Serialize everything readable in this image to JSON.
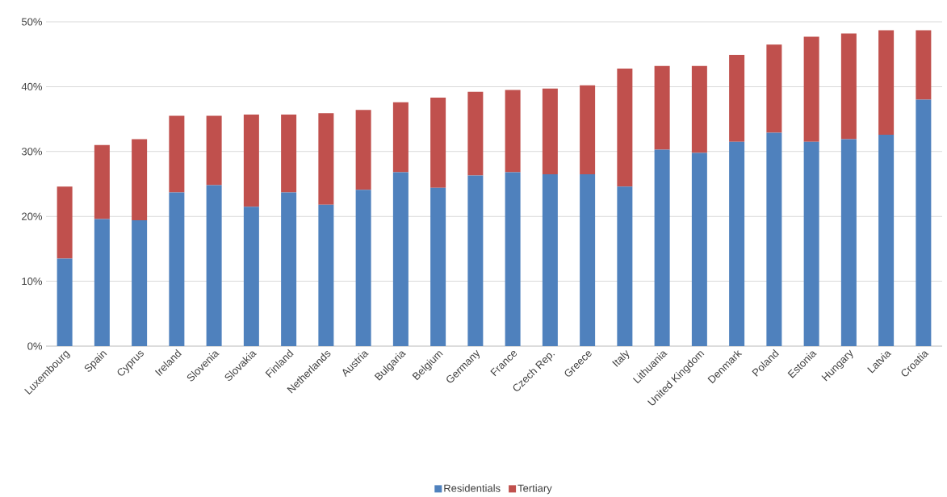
{
  "chart_data": {
    "type": "bar",
    "stacked": true,
    "categories": [
      "Luxembourg",
      "Spain",
      "Cyprus",
      "Ireland",
      "Slovenia",
      "Slovakia",
      "Finland",
      "Netherlands",
      "Austria",
      "Bulgaria",
      "Belgium",
      "Germany",
      "France",
      "Czech Rep.",
      "Greece",
      "Italy",
      "Lithuania",
      "United Kingdom",
      "Denmark",
      "Poland",
      "Estonia",
      "Hungary",
      "Latvia",
      "Croatia"
    ],
    "series": [
      {
        "name": "Residentials",
        "color": "#4f81bd",
        "values": [
          13.5,
          19.6,
          19.4,
          23.7,
          24.8,
          21.5,
          23.7,
          21.8,
          24.1,
          26.8,
          24.4,
          26.3,
          26.8,
          26.5,
          26.5,
          24.6,
          30.3,
          29.8,
          31.5,
          32.9,
          31.5,
          31.9,
          32.6,
          38.0
        ]
      },
      {
        "name": "Tertiary",
        "color": "#c0504d",
        "values": [
          11.1,
          11.4,
          12.5,
          11.8,
          10.7,
          14.2,
          12.0,
          14.1,
          12.3,
          10.8,
          13.9,
          12.9,
          12.7,
          13.2,
          13.7,
          18.2,
          12.9,
          13.4,
          13.4,
          13.6,
          16.2,
          16.3,
          16.1,
          10.7
        ]
      }
    ],
    "ylim": [
      0,
      50
    ],
    "yticks": [
      {
        "value": 0,
        "label": "0%"
      },
      {
        "value": 10,
        "label": "10%"
      },
      {
        "value": 20,
        "label": "20%"
      },
      {
        "value": 30,
        "label": "30%"
      },
      {
        "value": 40,
        "label": "40%"
      },
      {
        "value": 50,
        "label": "50%"
      }
    ],
    "grid": "y",
    "legend": "bottom"
  }
}
